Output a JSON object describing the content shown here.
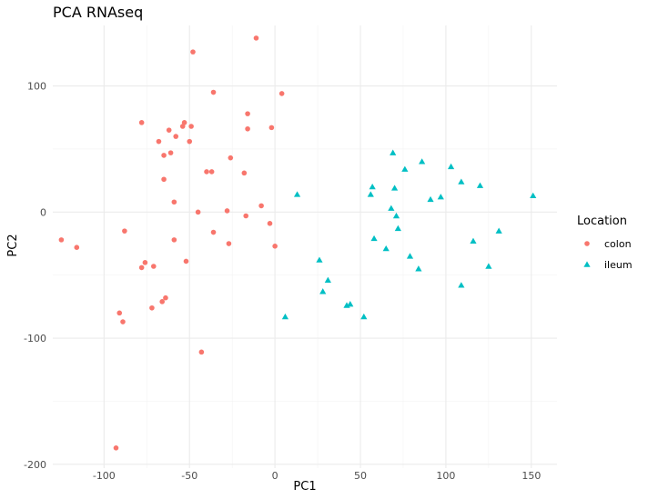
{
  "chart_data": {
    "type": "scatter",
    "title": "PCA RNAseq",
    "xlabel": "PC1",
    "ylabel": "PC2",
    "xlim": [
      -130,
      165
    ],
    "ylim": [
      -203,
      148
    ],
    "x_ticks": [
      -100,
      -50,
      0,
      50,
      100,
      150
    ],
    "y_ticks": [
      -200,
      -100,
      0,
      100
    ],
    "x_tick_labels": [
      "-100",
      "-50",
      "0",
      "50",
      "100",
      "150"
    ],
    "y_tick_labels": [
      "-200",
      "-100",
      "0",
      "100"
    ],
    "grid": true,
    "legend": {
      "title": "Location",
      "position": "right",
      "entries": [
        {
          "label": "colon",
          "color": "#F8766D",
          "shape": "circle"
        },
        {
          "label": "ileum",
          "color": "#00BFC4",
          "shape": "triangle"
        }
      ]
    },
    "series": [
      {
        "name": "colon",
        "color": "#F8766D",
        "shape": "circle",
        "points": [
          [
            -125,
            -22
          ],
          [
            -116,
            -28
          ],
          [
            -88,
            -15
          ],
          [
            -93,
            -187
          ],
          [
            -91,
            -80
          ],
          [
            -89,
            -87
          ],
          [
            -78,
            71
          ],
          [
            -78,
            -44
          ],
          [
            -76,
            -40
          ],
          [
            -72,
            -76
          ],
          [
            -71,
            -43
          ],
          [
            -68,
            56
          ],
          [
            -66,
            -71
          ],
          [
            -65,
            45
          ],
          [
            -65,
            26
          ],
          [
            -64,
            -68
          ],
          [
            -62,
            65
          ],
          [
            -61,
            47
          ],
          [
            -59,
            8
          ],
          [
            -59,
            -22
          ],
          [
            -58,
            60
          ],
          [
            -54,
            68
          ],
          [
            -53,
            71
          ],
          [
            -52,
            -39
          ],
          [
            -50,
            56
          ],
          [
            -49,
            68
          ],
          [
            -48,
            127
          ],
          [
            -45,
            0
          ],
          [
            -43,
            -111
          ],
          [
            -40,
            32
          ],
          [
            -37,
            32
          ],
          [
            -36,
            95
          ],
          [
            -36,
            -16
          ],
          [
            -28,
            1
          ],
          [
            -26,
            43
          ],
          [
            -27,
            -25
          ],
          [
            -18,
            31
          ],
          [
            -17,
            -3
          ],
          [
            -16,
            66
          ],
          [
            -16,
            78
          ],
          [
            -11,
            138
          ],
          [
            -8,
            5
          ],
          [
            -3,
            -9
          ],
          [
            -2,
            67
          ],
          [
            0,
            -27
          ],
          [
            4,
            94
          ]
        ]
      },
      {
        "name": "ileum",
        "color": "#00BFC4",
        "shape": "triangle",
        "points": [
          [
            6,
            -83
          ],
          [
            13,
            14
          ],
          [
            26,
            -38
          ],
          [
            28,
            -63
          ],
          [
            31,
            -54
          ],
          [
            42,
            -74
          ],
          [
            44,
            -73
          ],
          [
            52,
            -83
          ],
          [
            56,
            14
          ],
          [
            57,
            20
          ],
          [
            58,
            -21
          ],
          [
            65,
            -29
          ],
          [
            68,
            3
          ],
          [
            69,
            47
          ],
          [
            70,
            19
          ],
          [
            71,
            -3
          ],
          [
            72,
            -13
          ],
          [
            76,
            34
          ],
          [
            79,
            -35
          ],
          [
            84,
            -45
          ],
          [
            86,
            40
          ],
          [
            91,
            10
          ],
          [
            97,
            12
          ],
          [
            103,
            36
          ],
          [
            109,
            24
          ],
          [
            109,
            -58
          ],
          [
            116,
            -23
          ],
          [
            120,
            21
          ],
          [
            125,
            -43
          ],
          [
            131,
            -15
          ],
          [
            151,
            13
          ]
        ]
      }
    ]
  }
}
